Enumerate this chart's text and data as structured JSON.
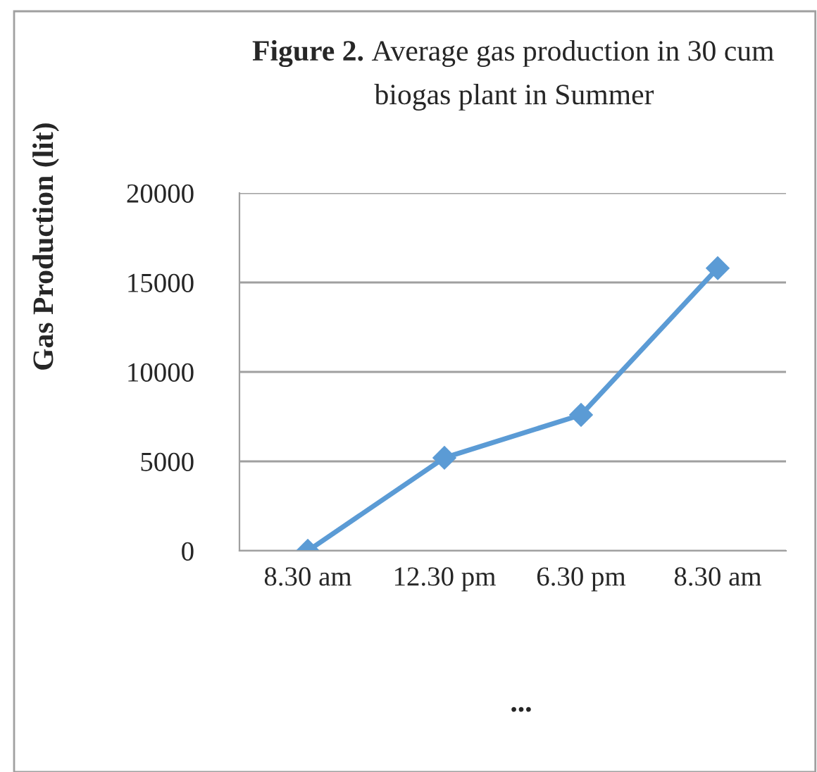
{
  "chart_data": {
    "type": "line",
    "title": "Figure 2.",
    "subtitle": "Average gas production in 30 cum\nbiogas plant in Summer",
    "ylabel": "Gas Production (lit)",
    "categories": [
      "8.30 am",
      "12.30 pm",
      "6.30 pm",
      "8.30 am"
    ],
    "series": [
      {
        "color": "#5b9bd5",
        "values": [
          0,
          5200,
          7600,
          15800
        ]
      }
    ],
    "ylim": [
      0,
      20000
    ],
    "yticks": [
      0,
      5000,
      10000,
      15000,
      20000
    ],
    "grid": "y",
    "marker": "diamond",
    "line_style": "solid",
    "legend": false,
    "annotations": [
      "..."
    ]
  }
}
